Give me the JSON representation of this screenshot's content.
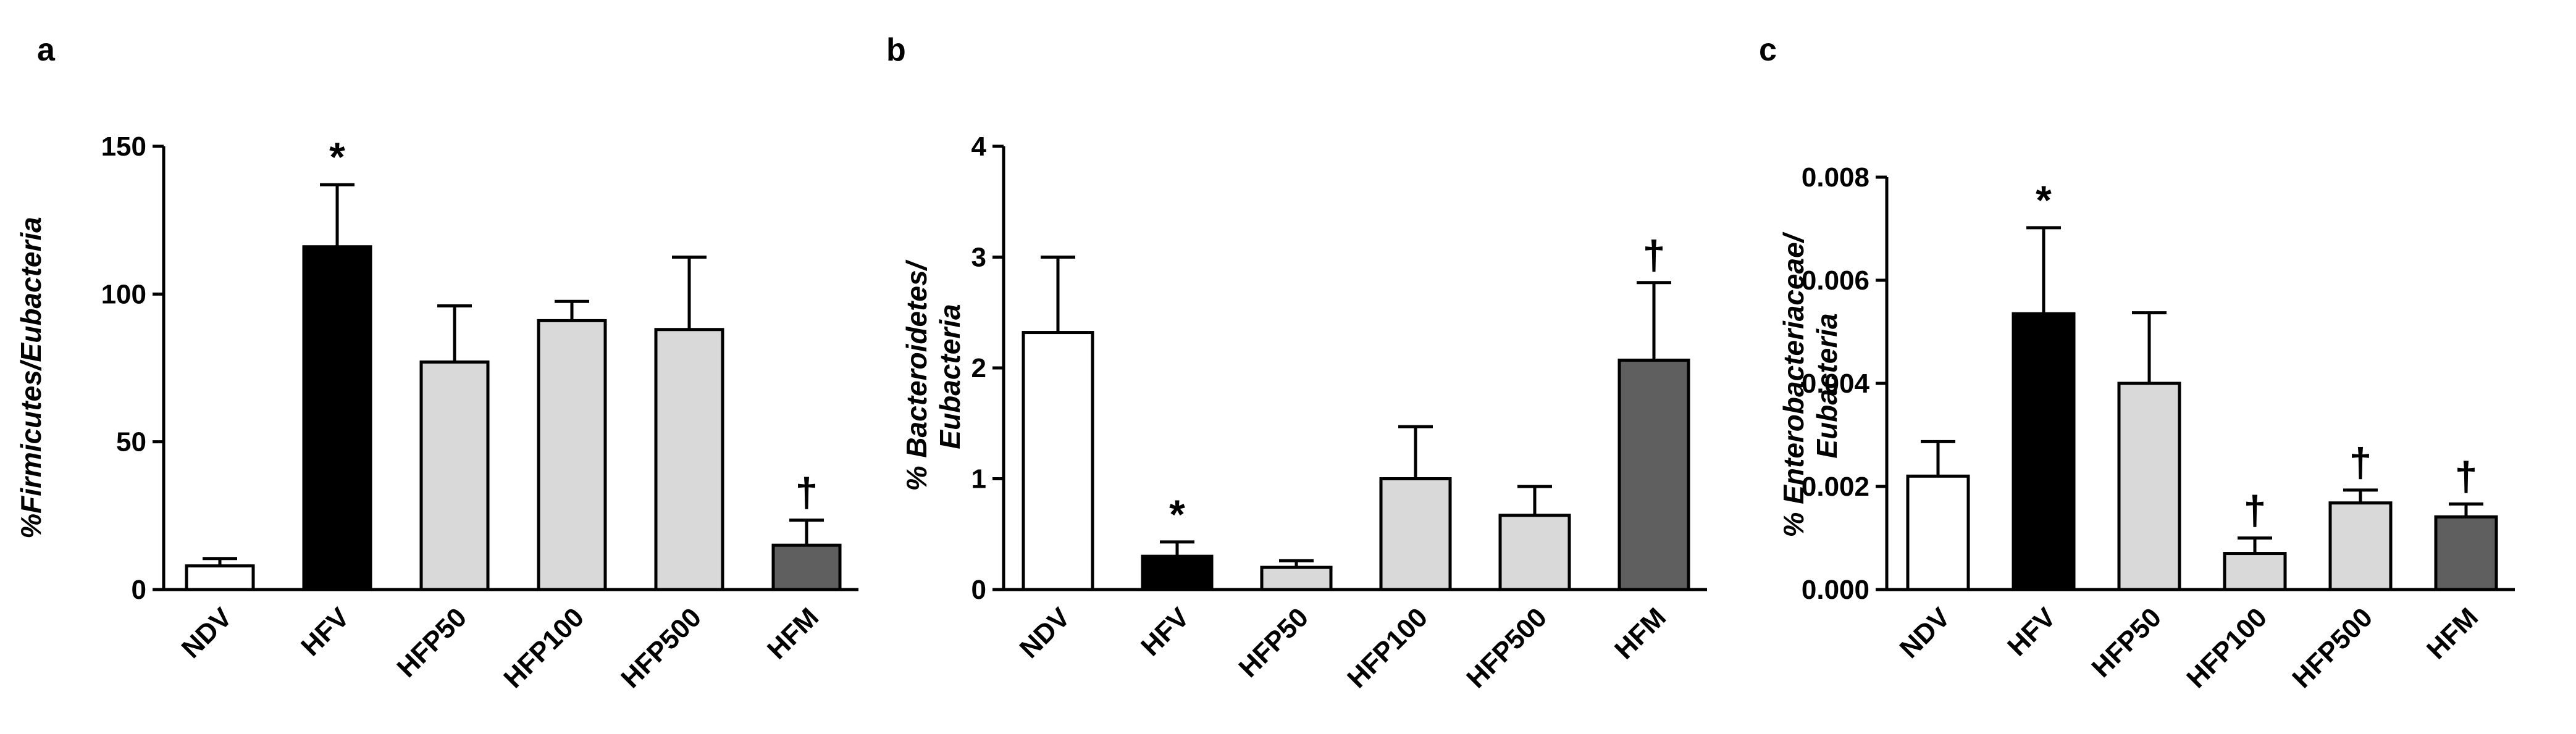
{
  "chart_data": [
    {
      "type": "bar",
      "panel": "a",
      "categories": [
        "NDV",
        "HFV",
        "HFP50",
        "HFP100",
        "HFP500",
        "HFM"
      ],
      "values": [
        8,
        116,
        77,
        91,
        88,
        15
      ],
      "errors": [
        2.5,
        21,
        19,
        6.5,
        24.5,
        8.5
      ],
      "significance": [
        "",
        "*",
        "",
        "",
        "",
        "†"
      ],
      "bar_colors": [
        "#ffffff",
        "#000000",
        "#d9d9d9",
        "#d9d9d9",
        "#d9d9d9",
        "#5f5f5f"
      ],
      "ylabel": "%Firmicutes/Eubacteria",
      "ylim": [
        0,
        150
      ],
      "yticks": [
        "0",
        "50",
        "100",
        "150"
      ],
      "grid": false
    },
    {
      "type": "bar",
      "panel": "b",
      "categories": [
        "NDV",
        "HFV",
        "HFP50",
        "HFP100",
        "HFP500",
        "HFM"
      ],
      "values": [
        2.32,
        0.3,
        0.2,
        1.0,
        0.67,
        2.07
      ],
      "errors": [
        0.68,
        0.13,
        0.06,
        0.47,
        0.26,
        0.7
      ],
      "significance": [
        "",
        "*",
        "",
        "",
        "",
        "†"
      ],
      "bar_colors": [
        "#ffffff",
        "#000000",
        "#d9d9d9",
        "#d9d9d9",
        "#d9d9d9",
        "#5f5f5f"
      ],
      "ylabel": "% Bacteroidetes/ Eubacteria",
      "ylim": [
        0,
        4
      ],
      "yticks": [
        "0",
        "1",
        "2",
        "3",
        "4"
      ],
      "grid": false
    },
    {
      "type": "bar",
      "panel": "c",
      "categories": [
        "NDV",
        "HFV",
        "HFP50",
        "HFP100",
        "HFP500",
        "HFM"
      ],
      "values": [
        0.0022,
        0.00535,
        0.004,
        0.0007,
        0.00168,
        0.00141
      ],
      "errors": [
        0.00067,
        0.00167,
        0.00137,
        0.0003,
        0.00025,
        0.00025
      ],
      "significance": [
        "",
        "*",
        "",
        "†",
        "†",
        "†"
      ],
      "bar_colors": [
        "#ffffff",
        "#000000",
        "#d9d9d9",
        "#d9d9d9",
        "#d9d9d9",
        "#5f5f5f"
      ],
      "ylabel": "% Enterobacteriaceae/ Eubacteria",
      "ylim": [
        0,
        0.008
      ],
      "yticks": [
        "0.000",
        "0.002",
        "0.004",
        "0.006",
        "0.008"
      ],
      "grid": false
    }
  ]
}
